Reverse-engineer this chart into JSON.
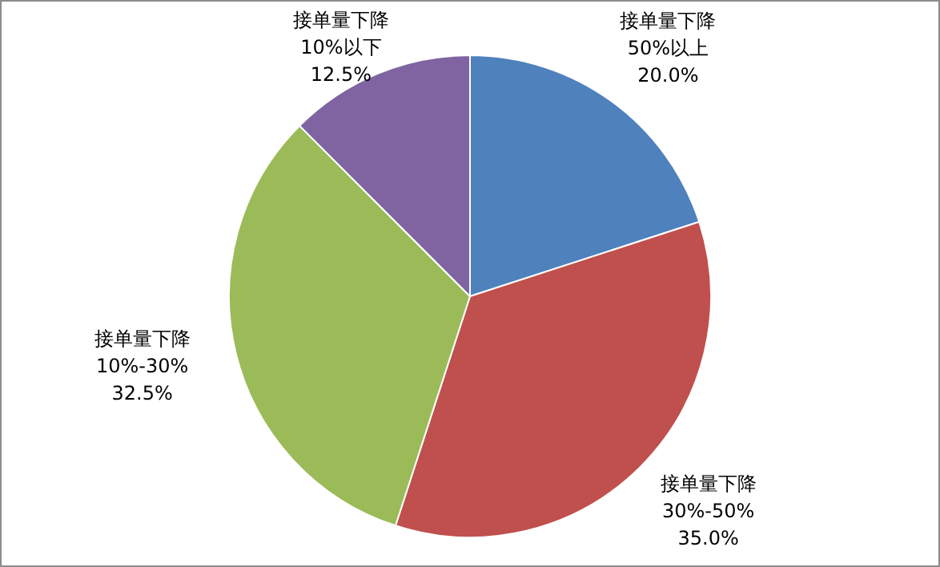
{
  "chart_data": {
    "type": "pie",
    "categories": [
      "接单量下降 50%以上",
      "接单量下降 30%-50%",
      "接单量下降 10%-30%",
      "接单量下降 10%以下"
    ],
    "values": [
      20.0,
      35.0,
      32.5,
      12.5
    ],
    "value_labels": [
      "20.0%",
      "35.0%",
      "32.5%",
      "12.5%"
    ],
    "colors": [
      "#4f81bd",
      "#c0504d",
      "#9bbb59",
      "#8064a2"
    ],
    "legend": false
  }
}
